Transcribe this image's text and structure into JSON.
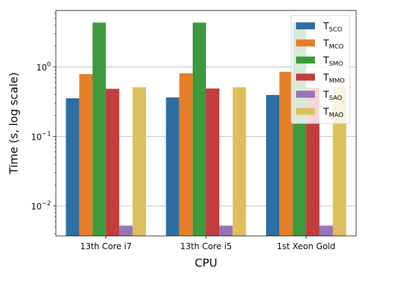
{
  "chart_data": {
    "type": "bar",
    "title": "",
    "xlabel": "CPU",
    "ylabel": "Time (s, log scale)",
    "yscale": "log",
    "ylim": [
      0.0037,
      6.5
    ],
    "grid": "y-major",
    "legend_position": "top-right",
    "categories": [
      "13th Core i7",
      "13th Core i5",
      "1st Xeon Gold"
    ],
    "yticks": [
      {
        "value": 0.01,
        "base": "10",
        "exp": "−2"
      },
      {
        "value": 0.1,
        "base": "10",
        "exp": "−1"
      },
      {
        "value": 1,
        "base": "10",
        "exp": "0"
      }
    ],
    "series": [
      {
        "name": "T",
        "subscript": "SCO",
        "color": "#2e6fa3",
        "values": [
          0.355,
          0.365,
          0.395
        ]
      },
      {
        "name": "T",
        "subscript": "MCO",
        "color": "#e57f2a",
        "values": [
          0.79,
          0.81,
          0.85
        ]
      },
      {
        "name": "T",
        "subscript": "SMO",
        "color": "#3c9a3c",
        "values": [
          4.35,
          4.35,
          4.35
        ]
      },
      {
        "name": "T",
        "subscript": "MMO",
        "color": "#c23d3e",
        "values": [
          0.485,
          0.49,
          0.5
        ]
      },
      {
        "name": "T",
        "subscript": "SAO",
        "color": "#9574b9",
        "values": [
          0.0052,
          0.0052,
          0.0052
        ]
      },
      {
        "name": "T",
        "subscript": "MAO",
        "color": "#dcc05e",
        "values": [
          0.51,
          0.51,
          0.51
        ]
      }
    ]
  }
}
